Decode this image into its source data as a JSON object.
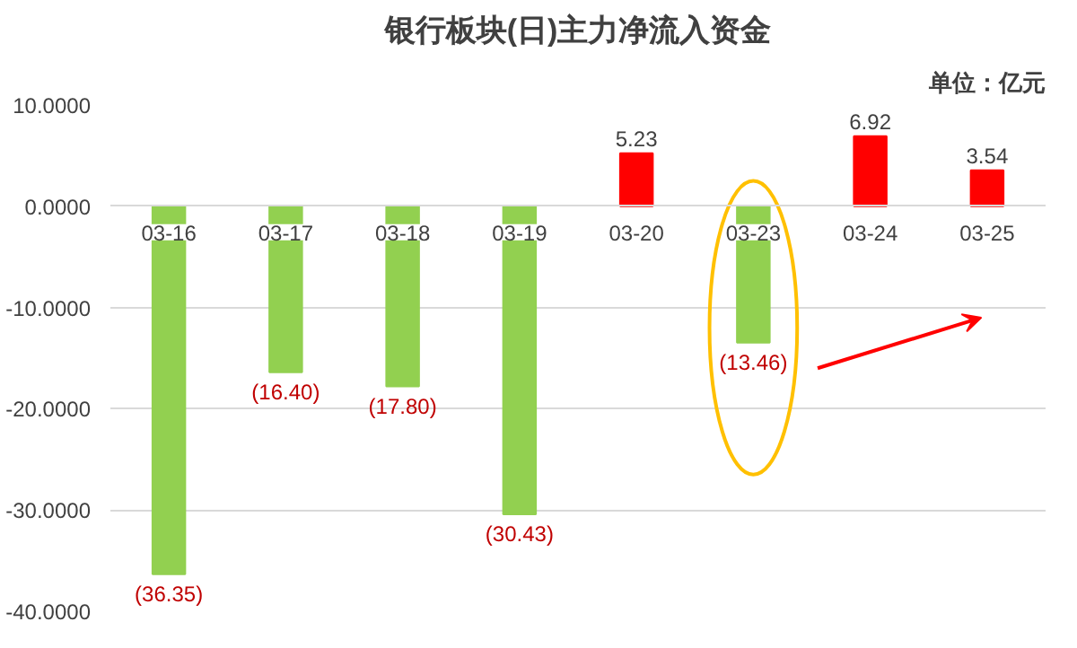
{
  "chart_data": {
    "type": "bar",
    "title": "银行板块(日)主力净流入资金",
    "subtitle": "单位：亿元",
    "categories": [
      "03-16",
      "03-17",
      "03-18",
      "03-19",
      "03-20",
      "03-23",
      "03-24",
      "03-25"
    ],
    "values": [
      -36.35,
      -16.4,
      -17.8,
      -30.43,
      5.23,
      -13.46,
      6.92,
      3.54
    ],
    "colors": [
      "#92d050",
      "#92d050",
      "#92d050",
      "#92d050",
      "#ff0000",
      "#92d050",
      "#ff0000",
      "#ff0000"
    ],
    "value_labels": [
      "(36.35)",
      "(16.40)",
      "(17.80)",
      "(30.43)",
      "5.23",
      "(13.46)",
      "6.92",
      "3.54"
    ],
    "ylim": [
      -40,
      10
    ],
    "yticks": [
      {
        "value": 10,
        "label": "10.0000"
      },
      {
        "value": 0,
        "label": "0.0000"
      },
      {
        "value": -10,
        "label": "-10.0000"
      },
      {
        "value": -20,
        "label": "-20.0000"
      },
      {
        "value": -30,
        "label": "-30.0000"
      },
      {
        "value": -40,
        "label": "-40.0000"
      }
    ],
    "grid": "y"
  }
}
